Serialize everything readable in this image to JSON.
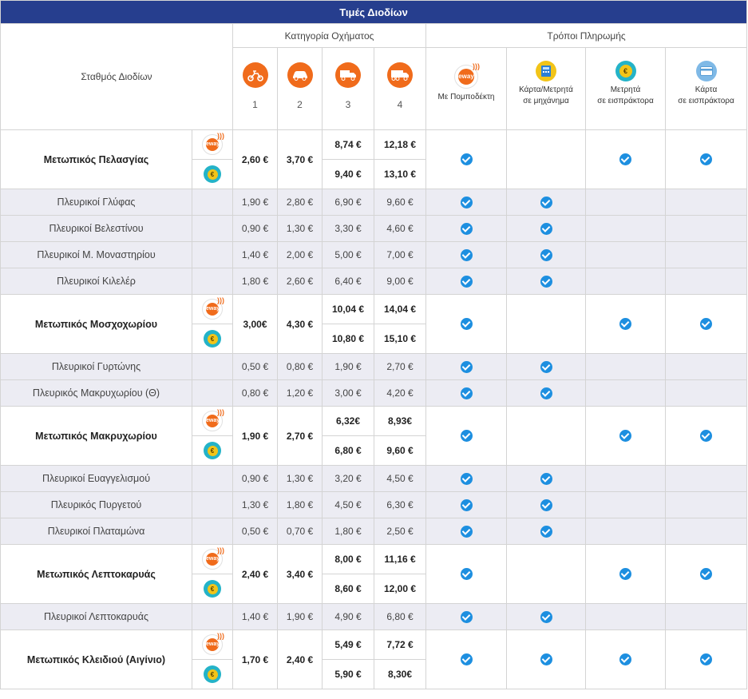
{
  "table": {
    "title": "Τιμές Διοδίων",
    "station_header": "Σταθμός Διοδίων",
    "category_header": "Κατηγορία Οχήματος",
    "payment_header": "Τρόποι Πληρωμής",
    "categories": [
      "1",
      "2",
      "3",
      "4"
    ],
    "payment_methods": [
      {
        "line1": "Με Πομποδέκτη",
        "line2": ""
      },
      {
        "line1": "Κάρτα/Μετρητά",
        "line2": "σε μηχάνημα"
      },
      {
        "line1": "Μετρητά",
        "line2": "σε εισπράκτορα"
      },
      {
        "line1": "Κάρτα",
        "line2": "σε εισπράκτορα"
      }
    ],
    "fronts": [
      {
        "name": "Μετωπικός Πελασγίας",
        "c1": "2,60 €",
        "c2": "3,70 €",
        "eway": {
          "c3": "8,74 €",
          "c4": "12,18 €"
        },
        "cash": {
          "c3": "9,40 €",
          "c4": "13,10 €"
        },
        "pay": [
          true,
          false,
          true,
          true
        ],
        "sides": [
          {
            "name": "Πλευρικοί Γλύφας",
            "c1": "1,90 €",
            "c2": "2,80 €",
            "c3": "6,90 €",
            "c4": "9,60 €",
            "pay": [
              true,
              true,
              false,
              false
            ]
          },
          {
            "name": "Πλευρικοί Βελεστίνου",
            "c1": "0,90 €",
            "c2": "1,30 €",
            "c3": "3,30 €",
            "c4": "4,60 €",
            "pay": [
              true,
              true,
              false,
              false
            ]
          },
          {
            "name": "Πλευρικοί Μ. Μοναστηρίου",
            "c1": "1,40 €",
            "c2": "2,00 €",
            "c3": "5,00 €",
            "c4": "7,00 €",
            "pay": [
              true,
              true,
              false,
              false
            ]
          },
          {
            "name": "Πλευρικοί Κιλελέρ",
            "c1": "1,80 €",
            "c2": "2,60 €",
            "c3": "6,40 €",
            "c4": "9,00 €",
            "pay": [
              true,
              true,
              false,
              false
            ]
          }
        ]
      },
      {
        "name": "Μετωπικός Μοσχοχωρίου",
        "c1": "3,00€",
        "c2": "4,30 €",
        "eway": {
          "c3": "10,04 €",
          "c4": "14,04 €"
        },
        "cash": {
          "c3": "10,80 €",
          "c4": "15,10 €"
        },
        "pay": [
          true,
          false,
          true,
          true
        ],
        "sides": [
          {
            "name": "Πλευρικοί Γυρτώνης",
            "c1": "0,50 €",
            "c2": "0,80 €",
            "c3": "1,90 €",
            "c4": "2,70 €",
            "pay": [
              true,
              true,
              false,
              false
            ]
          },
          {
            "name": "Πλευρικός Μακρυχωρίου (Θ)",
            "c1": "0,80 €",
            "c2": "1,20 €",
            "c3": "3,00 €",
            "c4": "4,20 €",
            "pay": [
              true,
              true,
              false,
              false
            ]
          }
        ]
      },
      {
        "name": "Μετωπικός Μακρυχωρίου",
        "c1": "1,90 €",
        "c2": "2,70 €",
        "eway": {
          "c3": "6,32€",
          "c4": "8,93€"
        },
        "cash": {
          "c3": "6,80 €",
          "c4": "9,60 €"
        },
        "pay": [
          true,
          false,
          true,
          true
        ],
        "sides": [
          {
            "name": "Πλευρικοί Ευαγγελισμού",
            "c1": "0,90 €",
            "c2": "1,30 €",
            "c3": "3,20 €",
            "c4": "4,50 €",
            "pay": [
              true,
              true,
              false,
              false
            ]
          },
          {
            "name": "Πλευρικός Πυργετού",
            "c1": "1,30 €",
            "c2": "1,80 €",
            "c3": "4,50 €",
            "c4": "6,30 €",
            "pay": [
              true,
              true,
              false,
              false
            ]
          },
          {
            "name": "Πλευρικοί Πλαταμώνα",
            "c1": "0,50 €",
            "c2": "0,70 €",
            "c3": "1,80 €",
            "c4": "2,50 €",
            "pay": [
              true,
              true,
              false,
              false
            ]
          }
        ]
      },
      {
        "name": "Μετωπικός Λεπτοκαρυάς",
        "c1": "2,40 €",
        "c2": "3,40 €",
        "eway": {
          "c3": "8,00 €",
          "c4": "11,16 €"
        },
        "cash": {
          "c3": "8,60 €",
          "c4": "12,00 €"
        },
        "pay": [
          true,
          false,
          true,
          true
        ],
        "sides": [
          {
            "name": "Πλευρικοί Λεπτοκαρυάς",
            "c1": "1,40 €",
            "c2": "1,90 €",
            "c3": "4,90 €",
            "c4": "6,80 €",
            "pay": [
              true,
              true,
              false,
              false
            ]
          }
        ]
      },
      {
        "name": "Μετωπικός Κλειδιού (Αιγίνιο)",
        "c1": "1,70 €",
        "c2": "2,40 €",
        "eway": {
          "c3": "5,49 €",
          "c4": "7,72 €"
        },
        "cash": {
          "c3": "5,90 €",
          "c4": "8,30€"
        },
        "pay": [
          true,
          true,
          true,
          true
        ],
        "sides": []
      }
    ]
  },
  "icons": {
    "vehicle": [
      "motorcycle-icon",
      "car-icon",
      "truck-icon",
      "heavy-truck-icon"
    ],
    "payment": [
      "eway-transponder-icon",
      "card-machine-icon",
      "cash-coin-icon",
      "credit-card-icon"
    ],
    "accent_blue": "#263e8e",
    "accent_orange": "#f06b1b",
    "check_blue": "#1d8fe0"
  }
}
